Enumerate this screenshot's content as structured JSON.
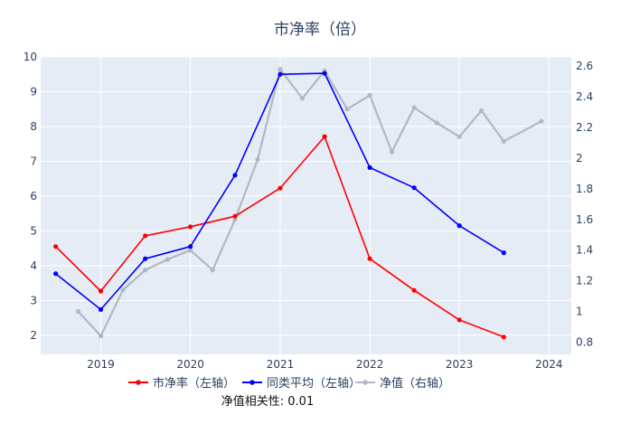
{
  "chart_data": {
    "type": "line",
    "title": "市净率（倍）",
    "annotation": "净值相关性: 0.01",
    "left_axis": {
      "ylim": [
        1.45,
        10.0
      ],
      "ticks": [
        "2",
        "3",
        "4",
        "5",
        "6",
        "7",
        "8",
        "9",
        "10"
      ]
    },
    "right_axis": {
      "ylim": [
        0.72,
        2.66
      ],
      "ticks": [
        "0.8",
        "1",
        "1.2",
        "1.4",
        "1.6",
        "1.8",
        "2",
        "2.2",
        "2.4",
        "2.6"
      ]
    },
    "x_axis": {
      "range": [
        "2018-05-01",
        "2024-04-01"
      ],
      "ticks": [
        "2019",
        "2020",
        "2021",
        "2022",
        "2023",
        "2024"
      ]
    },
    "grid": true,
    "legend_position": "bottom",
    "series": [
      {
        "name": "市净率（左轴）",
        "axis": "left",
        "color": "#ff0000",
        "x": [
          "2018-07-01",
          "2019-01-01",
          "2019-07-01",
          "2020-01-01",
          "2020-07-01",
          "2021-01-01",
          "2021-07-01",
          "2022-01-01",
          "2022-07-01",
          "2023-01-01",
          "2023-07-01"
        ],
        "values": [
          4.55,
          3.27,
          4.86,
          5.12,
          5.42,
          6.23,
          7.71,
          4.2,
          3.29,
          2.44,
          1.95
        ]
      },
      {
        "name": "同类平均（左轴）",
        "axis": "left",
        "color": "#0000ff",
        "x": [
          "2018-07-01",
          "2019-01-01",
          "2019-07-01",
          "2020-01-01",
          "2020-07-01",
          "2021-01-01",
          "2021-07-01",
          "2022-01-01",
          "2022-07-01",
          "2023-01-01",
          "2023-07-01"
        ],
        "values": [
          3.77,
          2.74,
          4.2,
          4.55,
          6.6,
          9.5,
          9.53,
          6.82,
          6.24,
          5.15,
          4.37
        ]
      },
      {
        "name": "净值（右轴）",
        "axis": "right",
        "color": "#b0b8c8",
        "x": [
          "2018-10-01",
          "2019-01-01",
          "2019-04-01",
          "2019-07-01",
          "2019-10-01",
          "2020-01-01",
          "2020-04-01",
          "2020-07-01",
          "2020-10-01",
          "2021-01-01",
          "2021-04-01",
          "2021-07-01",
          "2021-10-01",
          "2022-01-01",
          "2022-04-01",
          "2022-07-01",
          "2022-10-01",
          "2023-01-01",
          "2023-04-01",
          "2023-07-01",
          "2023-12-01"
        ],
        "values": [
          1.0,
          0.84,
          1.14,
          1.27,
          1.34,
          1.4,
          1.27,
          1.6,
          1.99,
          2.58,
          2.39,
          2.57,
          2.32,
          2.41,
          2.04,
          2.33,
          2.23,
          2.14,
          2.31,
          2.11,
          2.24
        ]
      }
    ]
  }
}
